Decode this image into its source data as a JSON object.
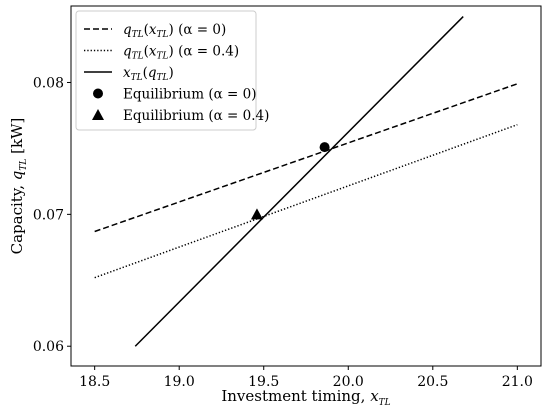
{
  "chart_data": {
    "type": "line",
    "xlabel": {
      "main": "Investment timing, ",
      "var": "x",
      "sub": "TL"
    },
    "ylabel": {
      "main": "Capacity, ",
      "var": "q",
      "sub": "TL",
      "unit": " [kW]"
    },
    "xlim": [
      18.36,
      21.14
    ],
    "ylim": [
      0.0585,
      0.0858
    ],
    "xticks": [
      18.5,
      19.0,
      19.5,
      20.0,
      20.5,
      21.0
    ],
    "xtick_labels": [
      "18.5",
      "19.0",
      "19.5",
      "20.0",
      "20.5",
      "21.0"
    ],
    "yticks": [
      0.06,
      0.07,
      0.08
    ],
    "ytick_labels": [
      "0.06",
      "0.07",
      "0.08"
    ],
    "grid": false,
    "legend_position": "top-left",
    "series": [
      {
        "name": "q_TL(x_TL) (α = 0)",
        "legend": {
          "fn": "q",
          "fn_sub": "TL",
          "arg": "x",
          "arg_sub": "TL",
          "param": " (α = 0)"
        },
        "style": "dashed",
        "x": [
          18.5,
          21.0
        ],
        "y": [
          0.0687,
          0.0799
        ]
      },
      {
        "name": "q_TL(x_TL) (α = 0.4)",
        "legend": {
          "fn": "q",
          "fn_sub": "TL",
          "arg": "x",
          "arg_sub": "TL",
          "param": " (α = 0.4)"
        },
        "style": "dotted",
        "x": [
          18.5,
          21.0
        ],
        "y": [
          0.0652,
          0.0768
        ]
      },
      {
        "name": "x_TL(q_TL)",
        "legend": {
          "fn": "x",
          "fn_sub": "TL",
          "arg": "q",
          "arg_sub": "TL",
          "param": ""
        },
        "style": "solid",
        "x": [
          18.74,
          20.68
        ],
        "y": [
          0.06,
          0.085
        ]
      }
    ],
    "markers": [
      {
        "name": "Equilibrium (α = 0)",
        "shape": "circle",
        "x": 19.86,
        "y": 0.0751
      },
      {
        "name": "Equilibrium (α = 0.4)",
        "shape": "triangle",
        "x": 19.46,
        "y": 0.07
      }
    ]
  }
}
